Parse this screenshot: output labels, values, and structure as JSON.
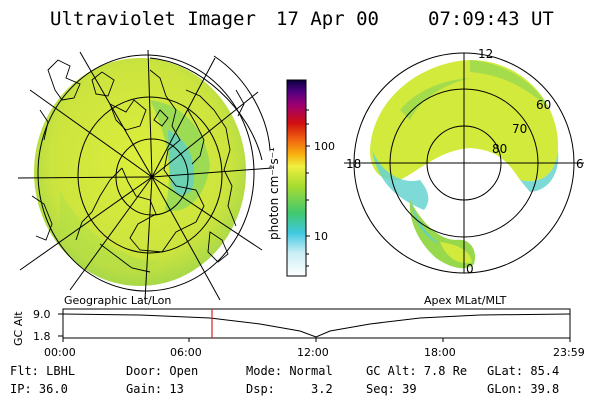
{
  "header": {
    "instrument": "Ultraviolet Imager",
    "date": "17 Apr 00",
    "time": "07:09:43 UT"
  },
  "colorbar": {
    "unit_label": "photon cm⁻²s⁻¹",
    "ticks": [
      "100",
      "10"
    ]
  },
  "polar_plot": {
    "mlt_labels": [
      "12",
      "18",
      "6",
      "0"
    ],
    "lat_labels": [
      "60",
      "70",
      "80"
    ]
  },
  "panel_labels": {
    "left": "Geographic Lat/Lon",
    "right": "Apex MLat/MLT"
  },
  "altitude_plot": {
    "axis_label": "GC Alt",
    "y_ticks": [
      "9.0",
      "1.8"
    ],
    "x_ticks": [
      "00:00",
      "06:00",
      "12:00",
      "18:00",
      "23:59"
    ]
  },
  "info": {
    "row1": [
      {
        "label": "Flt:",
        "value": "LBHL"
      },
      {
        "label": "Door:",
        "value": "Open"
      },
      {
        "label": "Mode:",
        "value": "Normal"
      },
      {
        "label": "GC Alt:",
        "value": "7.8 Re"
      },
      {
        "label": "GLat:",
        "value": "85.4"
      }
    ],
    "row2": [
      {
        "label": "IP:",
        "value": "36.0"
      },
      {
        "label": "Gain:",
        "value": "13"
      },
      {
        "label": "Dsp:",
        "value": "3.2"
      },
      {
        "label": "Seq:",
        "value": "39"
      },
      {
        "label": "GLon:",
        "value": "39.8"
      }
    ]
  },
  "colors": {
    "emission_main": "#d4ea3a",
    "emission_green": "#8fd04a",
    "emission_cyan": "#50c8d8",
    "time_marker": "#e02020"
  }
}
